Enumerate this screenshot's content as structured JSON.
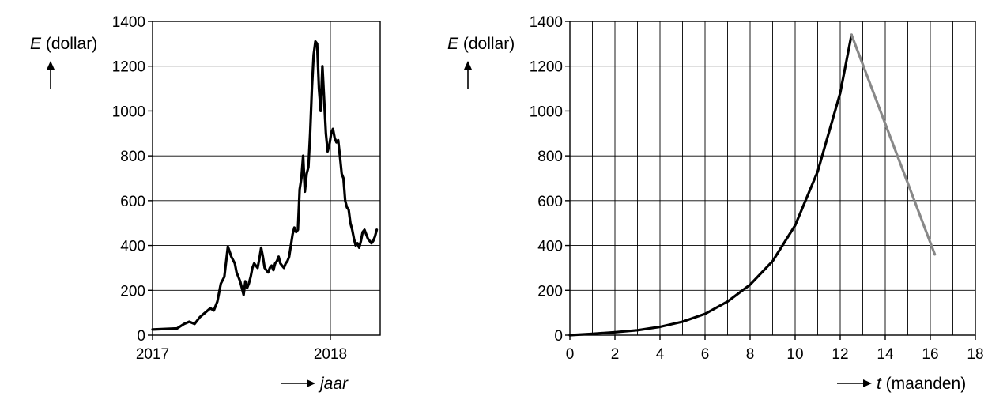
{
  "chart_data": [
    {
      "type": "line",
      "title": "",
      "ylabel": "E (dollar)",
      "xlabel": "jaar",
      "ylim": [
        0,
        1400
      ],
      "yticks": [
        0,
        200,
        400,
        600,
        800,
        1000,
        1200,
        1400
      ],
      "xlim": [
        2017,
        2018.3
      ],
      "xticks": [
        "2017",
        "2018"
      ],
      "grid": true,
      "series": [
        {
          "color": "#000000",
          "x": [
            2017.0,
            2017.14,
            2017.16,
            2017.18,
            2017.21,
            2017.24,
            2017.27,
            2017.3,
            2017.33,
            2017.35,
            2017.37,
            2017.39,
            2017.41,
            2017.43,
            2017.45,
            2017.47,
            2017.48,
            2017.49,
            2017.5,
            2017.51,
            2017.52,
            2017.53,
            2017.54,
            2017.55,
            2017.56,
            2017.57,
            2017.58,
            2017.59,
            2017.6,
            2017.61,
            2017.62,
            2017.63,
            2017.64,
            2017.65,
            2017.66,
            2017.67,
            2017.68,
            2017.69,
            2017.7,
            2017.71,
            2017.72,
            2017.73,
            2017.74,
            2017.75,
            2017.76,
            2017.77,
            2017.78,
            2017.79,
            2017.8,
            2017.81,
            2017.82,
            2017.83,
            2017.84,
            2017.85,
            2017.86,
            2017.87,
            2017.88,
            2017.89,
            2017.9,
            2017.91,
            2017.92,
            2017.93,
            2017.94,
            2017.95,
            2017.96,
            2017.97,
            2017.98,
            2017.99,
            2018.0,
            2018.01,
            2018.02,
            2018.03,
            2018.04,
            2018.05,
            2018.06,
            2018.07,
            2018.08,
            2018.09,
            2018.1,
            2018.11,
            2018.12,
            2018.13,
            2018.14,
            2018.15,
            2018.16,
            2018.17,
            2018.18,
            2018.19,
            2018.2,
            2018.21,
            2018.22,
            2018.23,
            2018.24,
            2018.25,
            2018.26,
            2018.27,
            2018.28
          ],
          "values": [
            25,
            30,
            40,
            50,
            60,
            50,
            80,
            100,
            120,
            110,
            150,
            230,
            260,
            395,
            350,
            320,
            280,
            260,
            240,
            210,
            180,
            240,
            210,
            230,
            260,
            300,
            320,
            310,
            300,
            340,
            390,
            350,
            300,
            290,
            280,
            300,
            310,
            290,
            320,
            330,
            350,
            320,
            310,
            300,
            320,
            330,
            350,
            400,
            450,
            480,
            460,
            470,
            650,
            700,
            800,
            640,
            720,
            750,
            900,
            1100,
            1250,
            1310,
            1300,
            1100,
            1000,
            1200,
            1050,
            900,
            820,
            850,
            900,
            920,
            880,
            860,
            870,
            800,
            720,
            700,
            600,
            570,
            560,
            500,
            470,
            430,
            400,
            410,
            390,
            420,
            460,
            470,
            450,
            430,
            420,
            410,
            420,
            440,
            470
          ]
        }
      ]
    },
    {
      "type": "line",
      "title": "",
      "ylabel": "E (dollar)",
      "xlabel": "t (maanden)",
      "ylim": [
        0,
        1400
      ],
      "yticks": [
        0,
        200,
        400,
        600,
        800,
        1000,
        1200,
        1400
      ],
      "xlim": [
        0,
        18
      ],
      "xticks": [
        0,
        2,
        4,
        6,
        8,
        10,
        12,
        14,
        16,
        18
      ],
      "grid": true,
      "series": [
        {
          "color": "#000000",
          "x": [
            0,
            1,
            2,
            3,
            4,
            5,
            6,
            7,
            8,
            9,
            10,
            11,
            12,
            12.5
          ],
          "values": [
            0,
            6,
            13,
            22,
            37,
            60,
            95,
            150,
            225,
            330,
            490,
            730,
            1080,
            1340
          ]
        },
        {
          "color": "#888888",
          "x": [
            12.5,
            16.2
          ],
          "values": [
            1340,
            360
          ]
        }
      ]
    }
  ]
}
